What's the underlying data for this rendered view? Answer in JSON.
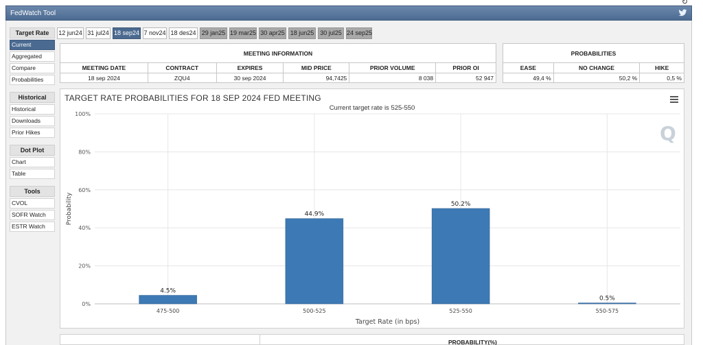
{
  "app": {
    "title": "FedWatch Tool",
    "twitter_icon": "twitter-icon"
  },
  "sidebar": {
    "sections": [
      {
        "title": "Target Rate",
        "items": [
          {
            "label": "Current",
            "active": true
          },
          {
            "label": "Aggregated",
            "active": false
          },
          {
            "label": "Compare",
            "active": false
          },
          {
            "label": "Probabilities",
            "active": false
          }
        ]
      },
      {
        "title": "Historical",
        "items": [
          {
            "label": "Historical",
            "active": false
          },
          {
            "label": "Downloads",
            "active": false
          },
          {
            "label": "Prior Hikes",
            "active": false
          }
        ]
      },
      {
        "title": "Dot Plot",
        "items": [
          {
            "label": "Chart",
            "active": false
          },
          {
            "label": "Table",
            "active": false
          }
        ]
      },
      {
        "title": "Tools",
        "items": [
          {
            "label": "CVOL",
            "active": false
          },
          {
            "label": "SOFR Watch",
            "active": false
          },
          {
            "label": "ESTR Watch",
            "active": false
          }
        ]
      }
    ]
  },
  "tabs": [
    {
      "label": "12 jun24",
      "state": "normal"
    },
    {
      "label": "31 jul24",
      "state": "normal"
    },
    {
      "label": "18 sep24",
      "state": "active"
    },
    {
      "label": "7 nov24",
      "state": "normal"
    },
    {
      "label": "18 des24",
      "state": "normal"
    },
    {
      "label": "29 jan25",
      "state": "gray"
    },
    {
      "label": "19 mar25",
      "state": "gray"
    },
    {
      "label": "30 apr25",
      "state": "gray"
    },
    {
      "label": "18 jun25",
      "state": "gray"
    },
    {
      "label": "30 jul25",
      "state": "gray"
    },
    {
      "label": "24 sep25",
      "state": "gray"
    }
  ],
  "meeting": {
    "title": "MEETING INFORMATION",
    "headers": [
      "MEETING DATE",
      "CONTRACT",
      "EXPIRES",
      "MID PRICE",
      "PRIOR VOLUME",
      "PRIOR OI"
    ],
    "values": [
      "18 sep 2024",
      "ZQU4",
      "30 sep 2024",
      "94,7425",
      "8 038",
      "52 947"
    ]
  },
  "probabilities": {
    "title": "PROBABILITIES",
    "headers": [
      "EASE",
      "NO CHANGE",
      "HIKE"
    ],
    "values": [
      "49,4 %",
      "50,2 %",
      "0,5 %"
    ]
  },
  "chart_panel": {
    "menu_icon": "hamburger-menu-icon",
    "watermark_icon": "cme-q-logo-icon"
  },
  "chart_data": {
    "type": "bar",
    "title": "TARGET RATE PROBABILITIES FOR 18 SEP 2024 FED MEETING",
    "subtitle": "Current target rate is 525-550",
    "categories": [
      "475-500",
      "500-525",
      "525-550",
      "550-575"
    ],
    "values": [
      4.5,
      44.9,
      50.2,
      0.5
    ],
    "data_labels": [
      "4.5%",
      "44.9%",
      "50.2%",
      "0.5%"
    ],
    "xlabel": "Target Rate (in bps)",
    "ylabel": "Probability",
    "ylim": [
      0,
      100
    ],
    "yticks": [
      0,
      20,
      40,
      60,
      80,
      100
    ],
    "ytick_labels": [
      "0%",
      "20%",
      "40%",
      "60%",
      "80%",
      "100%"
    ],
    "grid": true,
    "bar_color": "#3d79b4"
  },
  "bottom": {
    "label": "PROBABILITY(%)"
  }
}
